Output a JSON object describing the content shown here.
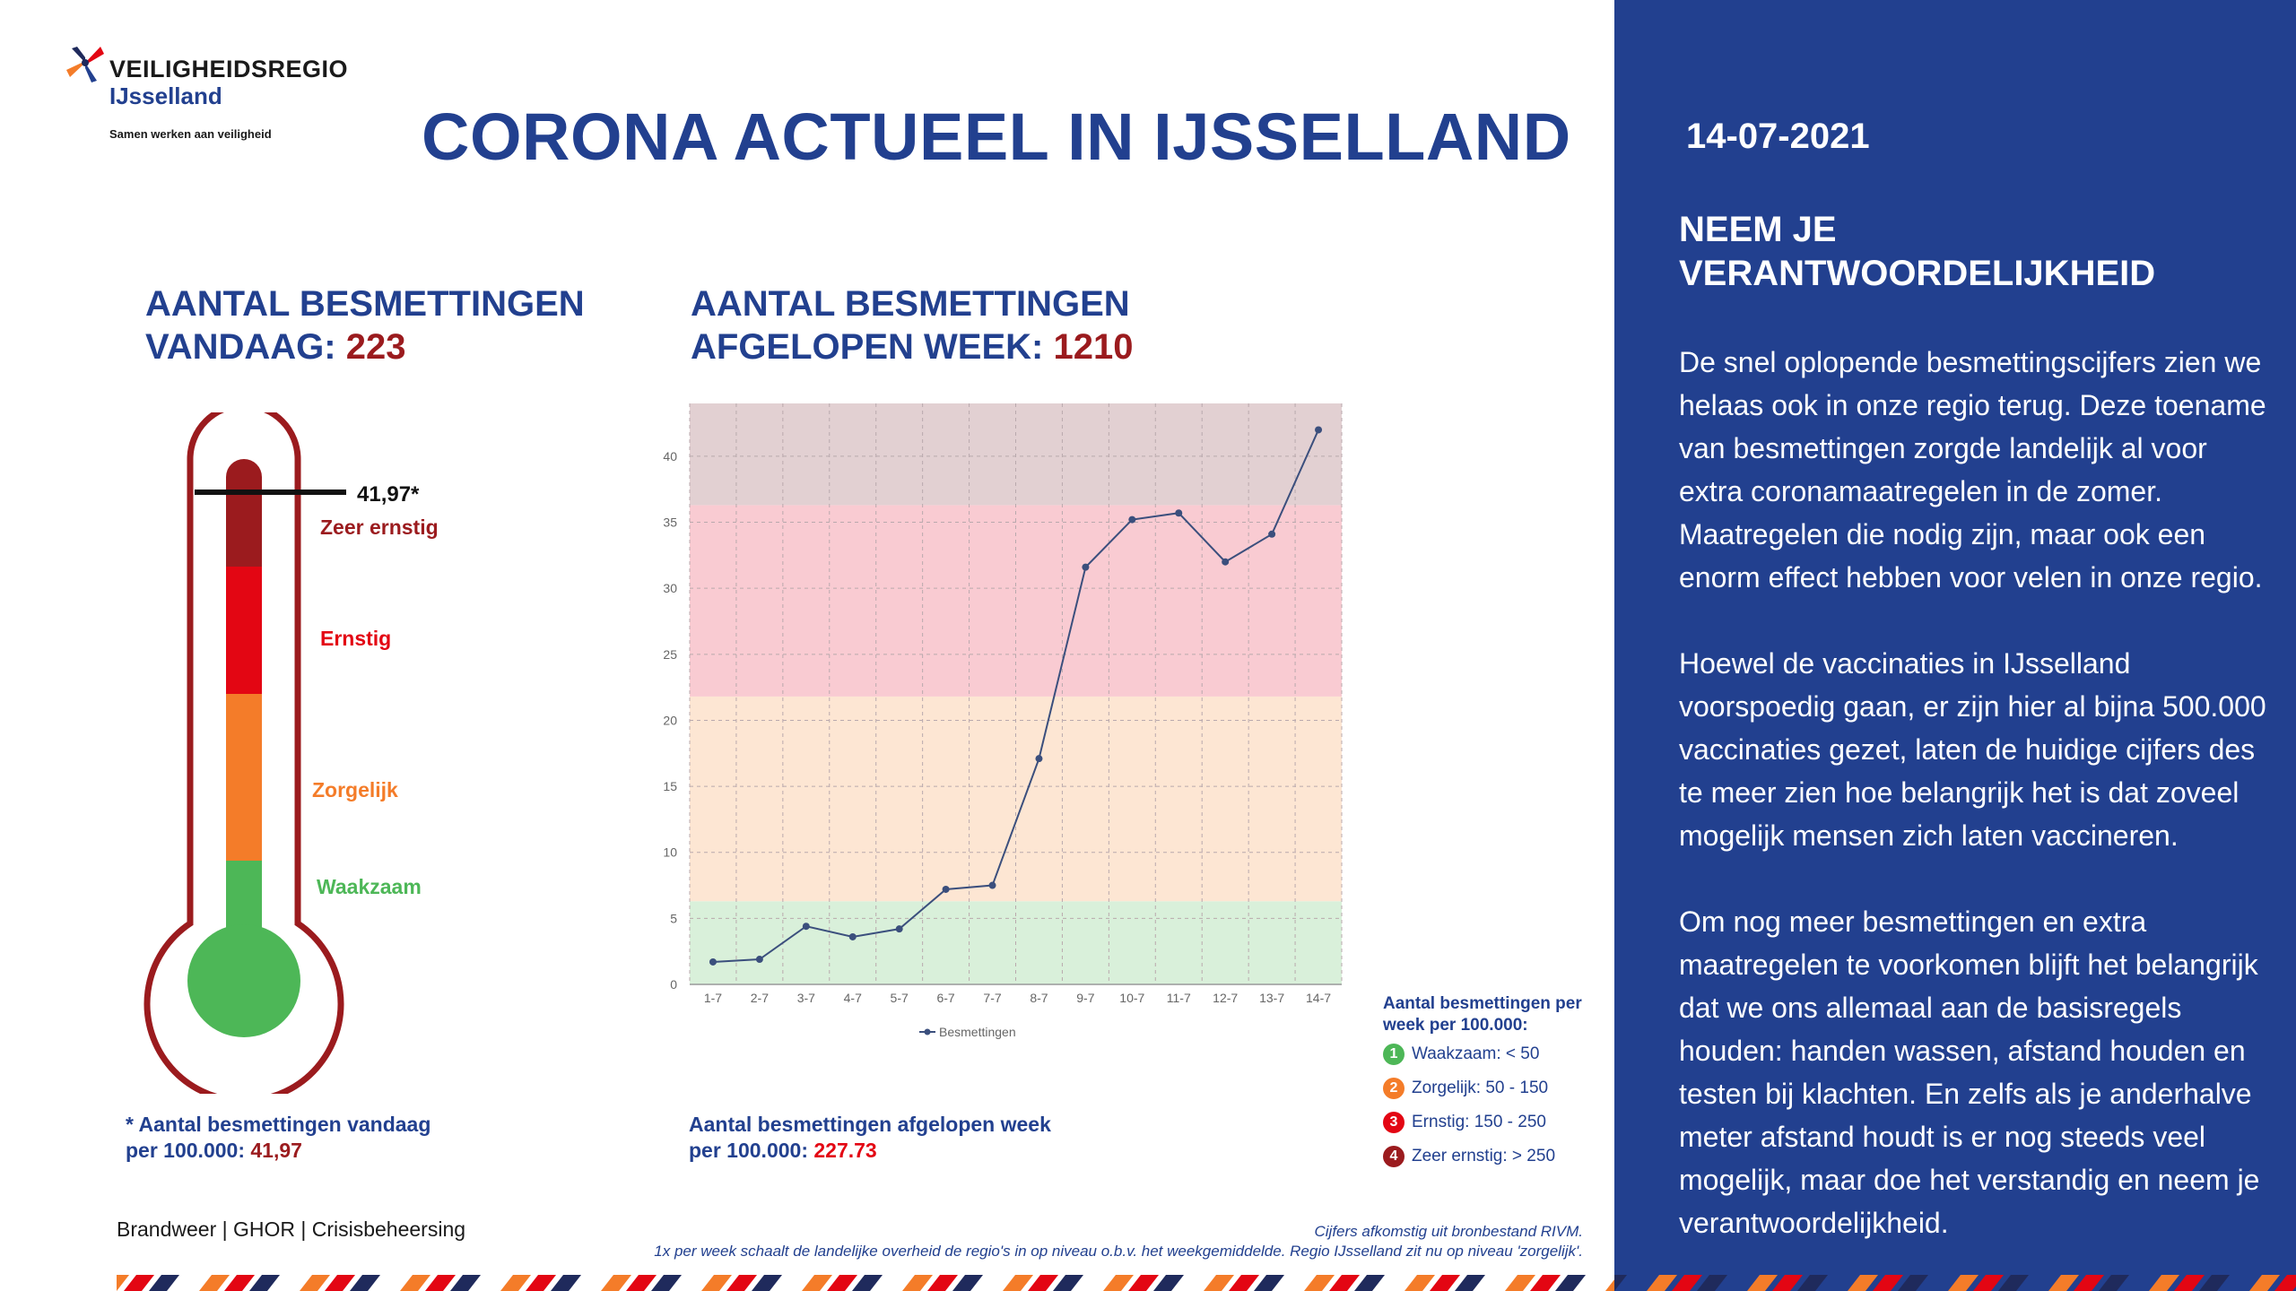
{
  "header": {
    "org_name": "VEILIGHEIDSREGIO",
    "org_region": "IJsselland",
    "org_tagline": "Samen werken aan veiligheid",
    "title": "CORONA ACTUEEL IN IJSSELLAND"
  },
  "today": {
    "heading_line1": "AANTAL BESMETTINGEN",
    "heading_line2": "VANDAAG: ",
    "count": "223",
    "marker_label": "41,97*",
    "marker_value": 41.97,
    "levels": [
      "Zeer ernstig",
      "Ernstig",
      "Zorgelijk",
      "Waakzaam"
    ],
    "footnote_line1": "* Aantal besmettingen vandaag",
    "footnote_line2": "per 100.000: ",
    "footnote_value": "41,97"
  },
  "week": {
    "heading_line1": "AANTAL BESMETTINGEN",
    "heading_line2": "AFGELOPEN WEEK: ",
    "count": "1210",
    "footnote_line1": "Aantal besmettingen afgelopen week",
    "footnote_line2": "per 100.000: ",
    "footnote_value": "227.73"
  },
  "chart_data": {
    "type": "line",
    "categories": [
      "1-7",
      "2-7",
      "3-7",
      "4-7",
      "5-7",
      "6-7",
      "7-7",
      "8-7",
      "9-7",
      "10-7",
      "11-7",
      "12-7",
      "13-7",
      "14-7"
    ],
    "series": [
      {
        "name": "Besmettingen",
        "values": [
          1.7,
          1.9,
          4.4,
          3.6,
          4.2,
          7.2,
          7.5,
          17.1,
          31.6,
          35.2,
          35.7,
          32.0,
          34.1,
          42.0
        ]
      }
    ],
    "ylim": [
      0,
      44
    ],
    "yticks": [
      0,
      5,
      10,
      15,
      20,
      25,
      30,
      35,
      40
    ],
    "bands": [
      {
        "from": 0,
        "to": 6.3,
        "color": "#d9f0da"
      },
      {
        "from": 6.3,
        "to": 21.8,
        "color": "#fde6d3"
      },
      {
        "from": 21.8,
        "to": 36.3,
        "color": "#f9cbd2"
      },
      {
        "from": 36.3,
        "to": 44,
        "color": "#e2d0d2"
      }
    ],
    "line_color": "#3b4f7d",
    "grid": true,
    "legend_position": "bottom"
  },
  "legend": {
    "title": "Aantal besmettingen per week per 100.000:",
    "items": [
      {
        "num": "1",
        "label": "Waakzaam: < 50",
        "color": "#4db757"
      },
      {
        "num": "2",
        "label": "Zorgelijk: 50 - 150",
        "color": "#f47c29"
      },
      {
        "num": "3",
        "label": "Ernstig: 150 - 250",
        "color": "#e30613"
      },
      {
        "num": "4",
        "label": "Zeer ernstig: > 250",
        "color": "#9b1b1e"
      }
    ]
  },
  "footer": {
    "brand": "Brandweer | GHOR | Crisisbeheersing",
    "source_line1": "Cijfers afkomstig uit bronbestand RIVM.",
    "source_line2": "1x per week schaalt de landelijke overheid de regio's in op niveau o.b.v. het weekgemiddelde. Regio IJsselland zit nu op niveau 'zorgelijk'."
  },
  "panel": {
    "date": "14-07-2021",
    "heading_line1": "NEEM JE",
    "heading_line2": "VERANTWOORDELIJKHEID",
    "paragraphs": [
      "De snel oplopende besmettingscijfers zien we helaas ook in onze regio terug. Deze toename van besmettingen zorgde landelijk al voor extra coronamaatregelen in de zomer. Maatregelen die nodig zijn, maar ook een enorm effect hebben voor velen in onze regio.",
      "Hoewel de vaccinaties in IJsselland voorspoedig gaan, er zijn hier al bijna 500.000 vaccinaties gezet, laten de huidige cijfers des te meer zien hoe belangrijk het is dat zoveel mogelijk mensen zich laten vaccineren.",
      "Om nog meer besmettingen en extra maatregelen te voorkomen blijft het belangrijk dat we ons allemaal aan de basisregels houden: handen wassen, afstand houden en testen bij klachten. En zelfs als je anderhalve meter afstand houdt is er nog steeds veel mogelijk, maar doe het verstandig en neem je verantwoordelijkheid."
    ]
  },
  "colors": {
    "brand_blue": "#22408f",
    "dark_red": "#9b1b1e",
    "red": "#e30613",
    "orange": "#f47c29",
    "green": "#4db757",
    "stripe_navy": "#1f2a5c"
  }
}
